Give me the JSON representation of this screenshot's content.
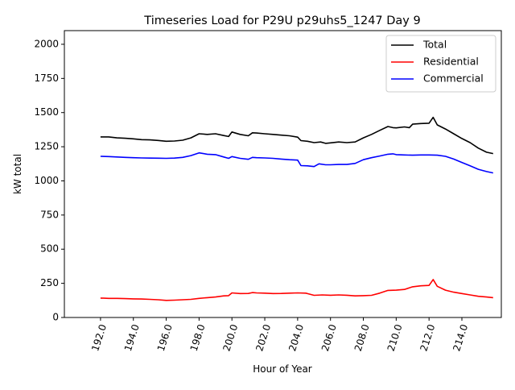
{
  "chart_data": {
    "type": "line",
    "title": "Timeseries Load for P29U p29uhs5_1247  Day 9",
    "xlabel": "Hour of Year",
    "ylabel": "kW total",
    "xlim": [
      189.8,
      216.4
    ],
    "ylim": [
      0,
      2100
    ],
    "x_ticks": [
      192,
      194,
      196,
      198,
      200,
      202,
      204,
      206,
      208,
      210,
      212,
      214
    ],
    "x_tick_labels": [
      "192.0",
      "194.0",
      "196.0",
      "198.0",
      "200.0",
      "202.0",
      "204.0",
      "206.0",
      "208.0",
      "210.0",
      "212.0",
      "214.0"
    ],
    "y_ticks": [
      0,
      250,
      500,
      750,
      1000,
      1250,
      1500,
      1750,
      2000
    ],
    "y_tick_labels": [
      "0",
      "250",
      "500",
      "750",
      "1000",
      "1250",
      "1500",
      "1750",
      "2000"
    ],
    "legend_position": "top-right",
    "series": [
      {
        "name": "Total",
        "color": "#000000",
        "points": [
          [
            192.0,
            1322
          ],
          [
            192.5,
            1322
          ],
          [
            193.0,
            1315
          ],
          [
            193.5,
            1312
          ],
          [
            194.0,
            1308
          ],
          [
            194.5,
            1302
          ],
          [
            195.0,
            1300
          ],
          [
            195.5,
            1296
          ],
          [
            196.0,
            1290
          ],
          [
            196.5,
            1292
          ],
          [
            197.0,
            1298
          ],
          [
            197.5,
            1315
          ],
          [
            198.0,
            1345
          ],
          [
            198.5,
            1340
          ],
          [
            199.0,
            1345
          ],
          [
            199.5,
            1332
          ],
          [
            199.8,
            1325
          ],
          [
            200.0,
            1358
          ],
          [
            200.5,
            1340
          ],
          [
            201.0,
            1330
          ],
          [
            201.25,
            1352
          ],
          [
            201.5,
            1350
          ],
          [
            202.0,
            1345
          ],
          [
            202.5,
            1340
          ],
          [
            203.0,
            1335
          ],
          [
            203.5,
            1330
          ],
          [
            204.0,
            1320
          ],
          [
            204.2,
            1295
          ],
          [
            204.6,
            1290
          ],
          [
            205.0,
            1280
          ],
          [
            205.4,
            1285
          ],
          [
            205.7,
            1275
          ],
          [
            206.0,
            1278
          ],
          [
            206.5,
            1285
          ],
          [
            207.0,
            1280
          ],
          [
            207.5,
            1285
          ],
          [
            208.0,
            1315
          ],
          [
            208.5,
            1340
          ],
          [
            209.0,
            1370
          ],
          [
            209.5,
            1398
          ],
          [
            209.8,
            1390
          ],
          [
            210.0,
            1388
          ],
          [
            210.5,
            1395
          ],
          [
            210.8,
            1390
          ],
          [
            211.0,
            1415
          ],
          [
            211.5,
            1420
          ],
          [
            212.0,
            1422
          ],
          [
            212.25,
            1465
          ],
          [
            212.5,
            1410
          ],
          [
            213.0,
            1380
          ],
          [
            213.5,
            1345
          ],
          [
            214.0,
            1310
          ],
          [
            214.5,
            1280
          ],
          [
            215.0,
            1240
          ],
          [
            215.5,
            1210
          ],
          [
            215.9,
            1200
          ]
        ]
      },
      {
        "name": "Residential",
        "color": "#ff0000",
        "points": [
          [
            192.0,
            142
          ],
          [
            192.5,
            140
          ],
          [
            193.0,
            140
          ],
          [
            193.5,
            138
          ],
          [
            194.0,
            136
          ],
          [
            194.5,
            135
          ],
          [
            195.0,
            133
          ],
          [
            195.5,
            130
          ],
          [
            196.0,
            125
          ],
          [
            196.5,
            127
          ],
          [
            197.0,
            130
          ],
          [
            197.5,
            133
          ],
          [
            198.0,
            140
          ],
          [
            198.5,
            145
          ],
          [
            199.0,
            150
          ],
          [
            199.5,
            158
          ],
          [
            199.8,
            160
          ],
          [
            200.0,
            180
          ],
          [
            200.5,
            175
          ],
          [
            201.0,
            176
          ],
          [
            201.25,
            182
          ],
          [
            201.5,
            180
          ],
          [
            202.0,
            178
          ],
          [
            202.5,
            175
          ],
          [
            203.0,
            176
          ],
          [
            203.5,
            178
          ],
          [
            204.0,
            180
          ],
          [
            204.5,
            178
          ],
          [
            205.0,
            162
          ],
          [
            205.5,
            165
          ],
          [
            206.0,
            163
          ],
          [
            206.5,
            165
          ],
          [
            207.0,
            163
          ],
          [
            207.5,
            158
          ],
          [
            208.0,
            160
          ],
          [
            208.5,
            162
          ],
          [
            209.0,
            178
          ],
          [
            209.5,
            198
          ],
          [
            210.0,
            200
          ],
          [
            210.5,
            205
          ],
          [
            211.0,
            225
          ],
          [
            211.5,
            232
          ],
          [
            212.0,
            235
          ],
          [
            212.25,
            278
          ],
          [
            212.5,
            228
          ],
          [
            213.0,
            200
          ],
          [
            213.5,
            185
          ],
          [
            214.0,
            175
          ],
          [
            214.5,
            165
          ],
          [
            215.0,
            155
          ],
          [
            215.5,
            150
          ],
          [
            215.9,
            145
          ]
        ]
      },
      {
        "name": "Commercial",
        "color": "#0000ff",
        "points": [
          [
            192.0,
            1180
          ],
          [
            192.5,
            1178
          ],
          [
            193.0,
            1175
          ],
          [
            193.5,
            1172
          ],
          [
            194.0,
            1170
          ],
          [
            194.5,
            1168
          ],
          [
            195.0,
            1167
          ],
          [
            195.5,
            1166
          ],
          [
            196.0,
            1165
          ],
          [
            196.5,
            1167
          ],
          [
            197.0,
            1172
          ],
          [
            197.5,
            1185
          ],
          [
            198.0,
            1205
          ],
          [
            198.5,
            1195
          ],
          [
            199.0,
            1192
          ],
          [
            199.5,
            1175
          ],
          [
            199.8,
            1165
          ],
          [
            200.0,
            1178
          ],
          [
            200.5,
            1165
          ],
          [
            201.0,
            1158
          ],
          [
            201.25,
            1172
          ],
          [
            201.5,
            1170
          ],
          [
            202.0,
            1168
          ],
          [
            202.5,
            1165
          ],
          [
            203.0,
            1160
          ],
          [
            203.5,
            1155
          ],
          [
            204.0,
            1152
          ],
          [
            204.2,
            1112
          ],
          [
            204.6,
            1110
          ],
          [
            205.0,
            1105
          ],
          [
            205.3,
            1125
          ],
          [
            205.7,
            1118
          ],
          [
            206.0,
            1118
          ],
          [
            206.5,
            1120
          ],
          [
            207.0,
            1120
          ],
          [
            207.5,
            1128
          ],
          [
            208.0,
            1155
          ],
          [
            208.5,
            1170
          ],
          [
            209.0,
            1182
          ],
          [
            209.5,
            1195
          ],
          [
            209.8,
            1198
          ],
          [
            210.0,
            1192
          ],
          [
            210.5,
            1190
          ],
          [
            211.0,
            1188
          ],
          [
            211.5,
            1190
          ],
          [
            212.0,
            1190
          ],
          [
            212.5,
            1188
          ],
          [
            213.0,
            1180
          ],
          [
            213.5,
            1160
          ],
          [
            214.0,
            1135
          ],
          [
            214.5,
            1110
          ],
          [
            215.0,
            1085
          ],
          [
            215.5,
            1068
          ],
          [
            215.9,
            1058
          ]
        ]
      }
    ]
  }
}
